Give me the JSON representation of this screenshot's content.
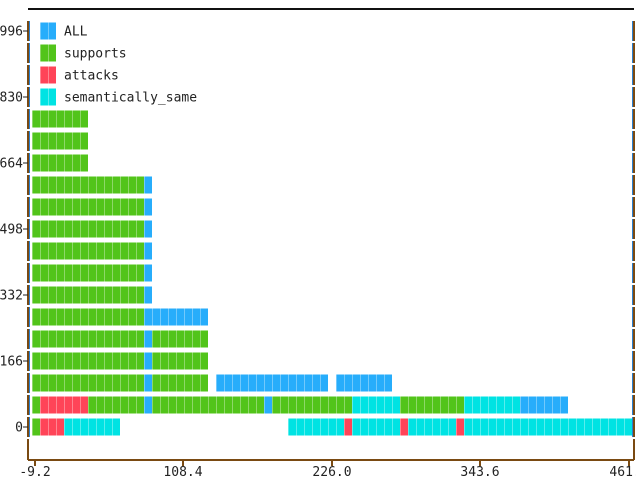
{
  "chart_data": {
    "type": "bar",
    "orientation": "horizontal-segmented",
    "title": "",
    "xlabel": "",
    "ylabel": "",
    "x_ticks": [
      "-9.2",
      "108.4",
      "226.0",
      "343.6",
      "461.2"
    ],
    "y_ticks": [
      "0",
      "166",
      "332",
      "498",
      "664",
      "830",
      "996"
    ],
    "legend": {
      "placement": "top-left",
      "entries": [
        {
          "key": "all",
          "label": "ALL"
        },
        {
          "key": "supports",
          "label": "supports"
        },
        {
          "key": "attacks",
          "label": "attacks"
        },
        {
          "key": "semantically_same",
          "label": "semantically_same"
        }
      ]
    },
    "colors": {
      "all": "#27adfb",
      "supports": "#52c41a",
      "attacks": "#ff4458",
      "semantically_same": "#00e3e3",
      "axis": "#7a4a12",
      "axis_accent": "#2a7fd0"
    },
    "rows_note_unit": "cells",
    "rows": [
      [
        [
          "supports",
          1
        ],
        [
          "attacks",
          3
        ],
        [
          "semantically_same",
          7
        ],
        [
          "gap",
          21
        ],
        [
          "semantically_same",
          7
        ],
        [
          "attacks",
          1
        ],
        [
          "semantically_same",
          6
        ],
        [
          "attacks",
          1
        ],
        [
          "semantically_same",
          6
        ],
        [
          "attacks",
          1
        ],
        [
          "semantically_same",
          21
        ]
      ],
      [
        [
          "supports",
          1
        ],
        [
          "attacks",
          6
        ],
        [
          "supports",
          7
        ],
        [
          "all",
          1
        ],
        [
          "supports",
          14
        ],
        [
          "all",
          1
        ],
        [
          "supports",
          10
        ],
        [
          "semantically_same",
          6
        ],
        [
          "supports",
          8
        ],
        [
          "semantically_same",
          7
        ],
        [
          "all",
          6
        ]
      ],
      [
        [
          "supports",
          14
        ],
        [
          "all",
          1
        ],
        [
          "supports",
          7
        ],
        [
          "gap",
          1
        ],
        [
          "all",
          14
        ],
        [
          "gap",
          1
        ],
        [
          "all",
          7
        ]
      ],
      [
        [
          "supports",
          14
        ],
        [
          "all",
          1
        ],
        [
          "supports",
          7
        ]
      ],
      [
        [
          "supports",
          14
        ],
        [
          "all",
          1
        ],
        [
          "supports",
          7
        ]
      ],
      [
        [
          "supports",
          14
        ],
        [
          "all",
          8
        ]
      ],
      [
        [
          "supports",
          14
        ],
        [
          "all",
          1
        ]
      ],
      [
        [
          "supports",
          14
        ],
        [
          "all",
          1
        ]
      ],
      [
        [
          "supports",
          14
        ],
        [
          "all",
          1
        ]
      ],
      [
        [
          "supports",
          14
        ],
        [
          "all",
          1
        ]
      ],
      [
        [
          "supports",
          14
        ],
        [
          "all",
          1
        ]
      ],
      [
        [
          "supports",
          14
        ],
        [
          "all",
          1
        ]
      ],
      [
        [
          "supports",
          7
        ]
      ],
      [
        [
          "supports",
          7
        ]
      ],
      [
        [
          "supports",
          7
        ]
      ],
      [],
      [],
      [],
      []
    ]
  }
}
